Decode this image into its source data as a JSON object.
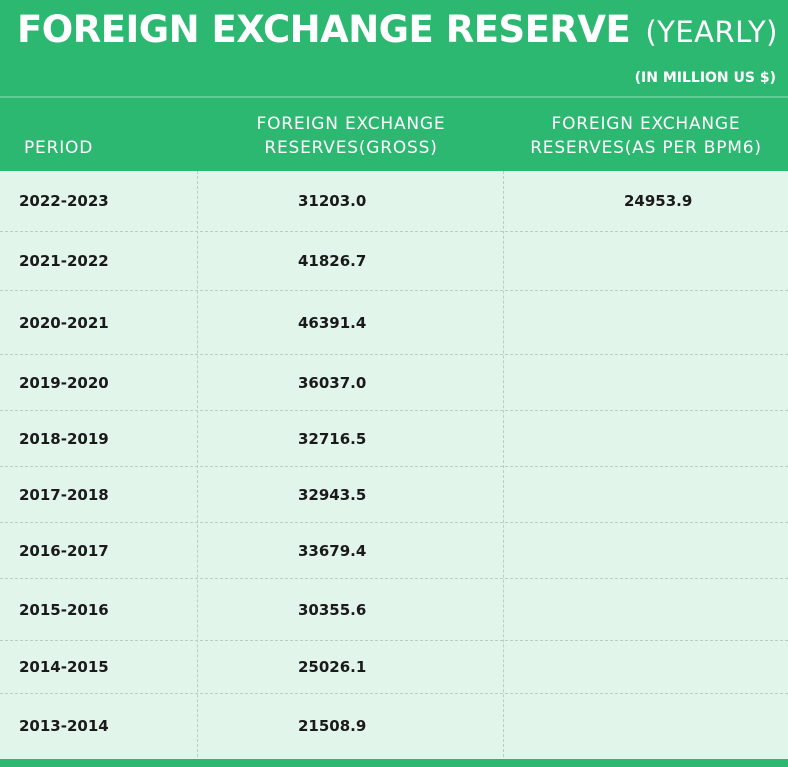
{
  "title": {
    "main": "FOREIGN EXCHANGE RESERVE",
    "sub": "(YEARLY)",
    "unit": "(IN MILLION US $)"
  },
  "table": {
    "headers": {
      "period": "PERIOD",
      "gross_line1": "FOREIGN EXCHANGE",
      "gross_line2": "RESERVES(GROSS)",
      "bpm_line1": "FOREIGN EXCHANGE",
      "bpm_line2": "RESERVES(AS PER BPM6)"
    },
    "rows": [
      {
        "period": "2022-2023",
        "gross": "31203.0",
        "bpm": "24953.9"
      },
      {
        "period": "2021-2022",
        "gross": "41826.7",
        "bpm": ""
      },
      {
        "period": "2020-2021",
        "gross": "46391.4",
        "bpm": ""
      },
      {
        "period": "2019-2020",
        "gross": "36037.0",
        "bpm": ""
      },
      {
        "period": "2018-2019",
        "gross": "32716.5",
        "bpm": ""
      },
      {
        "period": "2017-2018",
        "gross": "32943.5",
        "bpm": ""
      },
      {
        "period": "2016-2017",
        "gross": "33679.4",
        "bpm": ""
      },
      {
        "period": "2015-2016",
        "gross": "30355.6",
        "bpm": ""
      },
      {
        "period": "2014-2015",
        "gross": "25026.1",
        "bpm": ""
      },
      {
        "period": "2013-2014",
        "gross": "21508.9",
        "bpm": ""
      }
    ]
  },
  "colors": {
    "header_green": "#2db872",
    "row_background": "#e1f5ea",
    "divider": "#b9cfc2"
  }
}
